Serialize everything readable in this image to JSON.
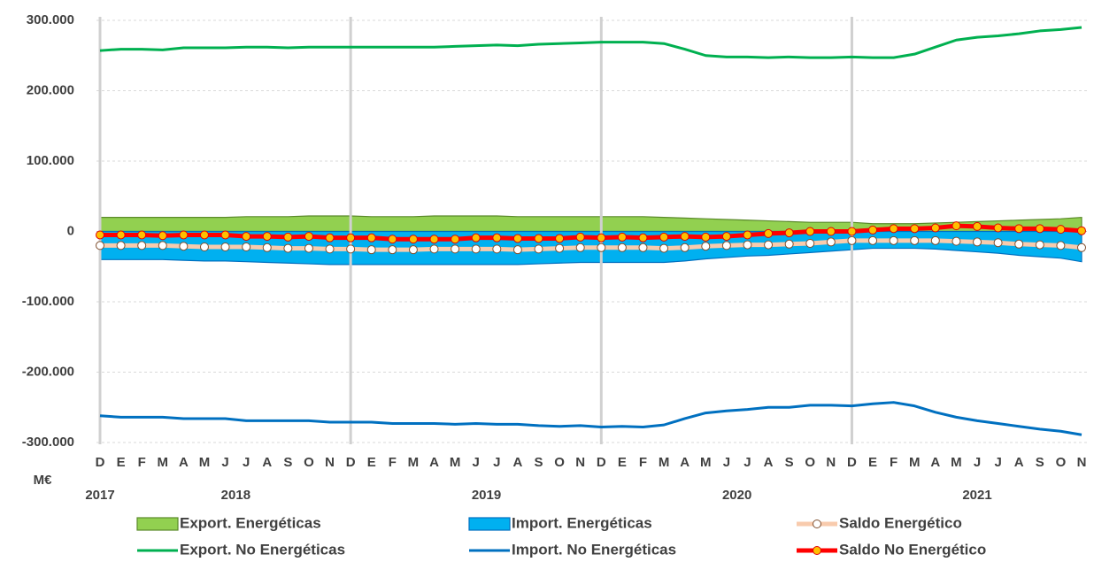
{
  "chart_data": {
    "type": "line",
    "categories": [
      "D",
      "E",
      "F",
      "M",
      "A",
      "M",
      "J",
      "J",
      "A",
      "S",
      "O",
      "N",
      "D",
      "E",
      "F",
      "M",
      "A",
      "M",
      "J",
      "J",
      "A",
      "S",
      "O",
      "N",
      "D",
      "E",
      "F",
      "M",
      "A",
      "M",
      "J",
      "J",
      "A",
      "S",
      "O",
      "N",
      "D",
      "E",
      "F",
      "M",
      "A",
      "M",
      "J",
      "J",
      "A",
      "S",
      "O",
      "N"
    ],
    "years": [
      "2017",
      "2018",
      "2019",
      "2020",
      "2021"
    ],
    "y_axis_label": "M€",
    "ylim": [
      -300000,
      300000
    ],
    "yticks": [
      {
        "value": 300000,
        "label": "300.000"
      },
      {
        "value": 200000,
        "label": "200.000"
      },
      {
        "value": 100000,
        "label": "100.000"
      },
      0,
      {
        "value": -100000,
        "label": "-100.000"
      },
      {
        "value": -200000,
        "label": "-200.000"
      },
      {
        "value": -300000,
        "label": "-300.000"
      }
    ],
    "grid": true,
    "legend": "bottom",
    "series": [
      {
        "name": "Export. Energéticas",
        "kind": "area",
        "color": "#92d050",
        "edge": "#5a8a2a",
        "values": [
          20000,
          20000,
          20000,
          20000,
          20000,
          20000,
          20000,
          21000,
          21000,
          21000,
          22000,
          22000,
          22000,
          21000,
          21000,
          21000,
          22000,
          22000,
          22000,
          22000,
          21000,
          21000,
          21000,
          21000,
          21000,
          21000,
          21000,
          20000,
          19000,
          18000,
          17000,
          16000,
          15000,
          14000,
          13000,
          13000,
          13000,
          11000,
          11000,
          11000,
          12000,
          13000,
          14000,
          15000,
          16000,
          17000,
          18000,
          20000
        ]
      },
      {
        "name": "Import. Energéticas",
        "kind": "area",
        "color": "#00b0f0",
        "edge": "#0070c0",
        "values": [
          -40000,
          -40000,
          -40000,
          -40000,
          -41000,
          -42000,
          -42000,
          -43000,
          -44000,
          -45000,
          -46000,
          -47000,
          -47000,
          -47000,
          -47000,
          -47000,
          -47000,
          -47000,
          -47000,
          -47000,
          -47000,
          -46000,
          -45000,
          -44000,
          -44000,
          -44000,
          -44000,
          -44000,
          -42000,
          -39000,
          -37000,
          -35000,
          -34000,
          -32000,
          -30000,
          -28000,
          -26000,
          -24000,
          -24000,
          -24000,
          -25000,
          -27000,
          -29000,
          -31000,
          -34000,
          -36000,
          -38000,
          -43000
        ]
      },
      {
        "name": "Saldo Energético",
        "kind": "marker-line",
        "color": "#f8cbad",
        "marker_fill": "#ffffff",
        "marker_edge": "#7f4f2f",
        "values": [
          -20000,
          -20000,
          -20000,
          -20000,
          -21000,
          -22000,
          -22000,
          -22000,
          -23000,
          -24000,
          -24000,
          -25000,
          -25000,
          -26000,
          -26000,
          -26000,
          -25000,
          -25000,
          -25000,
          -25000,
          -26000,
          -25000,
          -24000,
          -23000,
          -23000,
          -23000,
          -23000,
          -24000,
          -23000,
          -21000,
          -20000,
          -19000,
          -19000,
          -18000,
          -17000,
          -15000,
          -13000,
          -13000,
          -13000,
          -13000,
          -13000,
          -14000,
          -15000,
          -16000,
          -18000,
          -19000,
          -20000,
          -23000
        ]
      },
      {
        "name": "Export. No Energéticas",
        "kind": "line",
        "color": "#00b050",
        "values": [
          257000,
          259000,
          259000,
          258000,
          261000,
          261000,
          261000,
          262000,
          262000,
          261000,
          262000,
          262000,
          262000,
          262000,
          262000,
          262000,
          262000,
          263000,
          264000,
          265000,
          264000,
          266000,
          267000,
          268000,
          269000,
          269000,
          269000,
          267000,
          259000,
          250000,
          248000,
          248000,
          247000,
          248000,
          247000,
          247000,
          248000,
          247000,
          247000,
          252000,
          262000,
          272000,
          276000,
          278000,
          281000,
          285000,
          287000,
          290000
        ]
      },
      {
        "name": "Import. No Energéticas",
        "kind": "line",
        "color": "#0070c0",
        "values": [
          -262000,
          -264000,
          -264000,
          -264000,
          -266000,
          -266000,
          -266000,
          -269000,
          -269000,
          -269000,
          -269000,
          -271000,
          -271000,
          -271000,
          -273000,
          -273000,
          -273000,
          -274000,
          -273000,
          -274000,
          -274000,
          -276000,
          -277000,
          -276000,
          -278000,
          -277000,
          -278000,
          -275000,
          -266000,
          -258000,
          -255000,
          -253000,
          -250000,
          -250000,
          -247000,
          -247000,
          -248000,
          -245000,
          -243000,
          -248000,
          -257000,
          -264000,
          -269000,
          -273000,
          -277000,
          -281000,
          -284000,
          -289000
        ]
      },
      {
        "name": "Saldo No Energético",
        "kind": "marker-line",
        "color": "#ff0000",
        "marker_fill": "#ffc000",
        "marker_edge": "#e00000",
        "values": [
          -5000,
          -5000,
          -5000,
          -6000,
          -5000,
          -5000,
          -5000,
          -7000,
          -7000,
          -8000,
          -7000,
          -9000,
          -9000,
          -9000,
          -11000,
          -11000,
          -11000,
          -11000,
          -9000,
          -9000,
          -10000,
          -10000,
          -10000,
          -8000,
          -9000,
          -8000,
          -9000,
          -8000,
          -7000,
          -8000,
          -7000,
          -5000,
          -3000,
          -2000,
          0,
          0,
          0,
          2000,
          4000,
          4000,
          5000,
          8000,
          7000,
          5000,
          4000,
          4000,
          3000,
          1000
        ]
      }
    ]
  }
}
